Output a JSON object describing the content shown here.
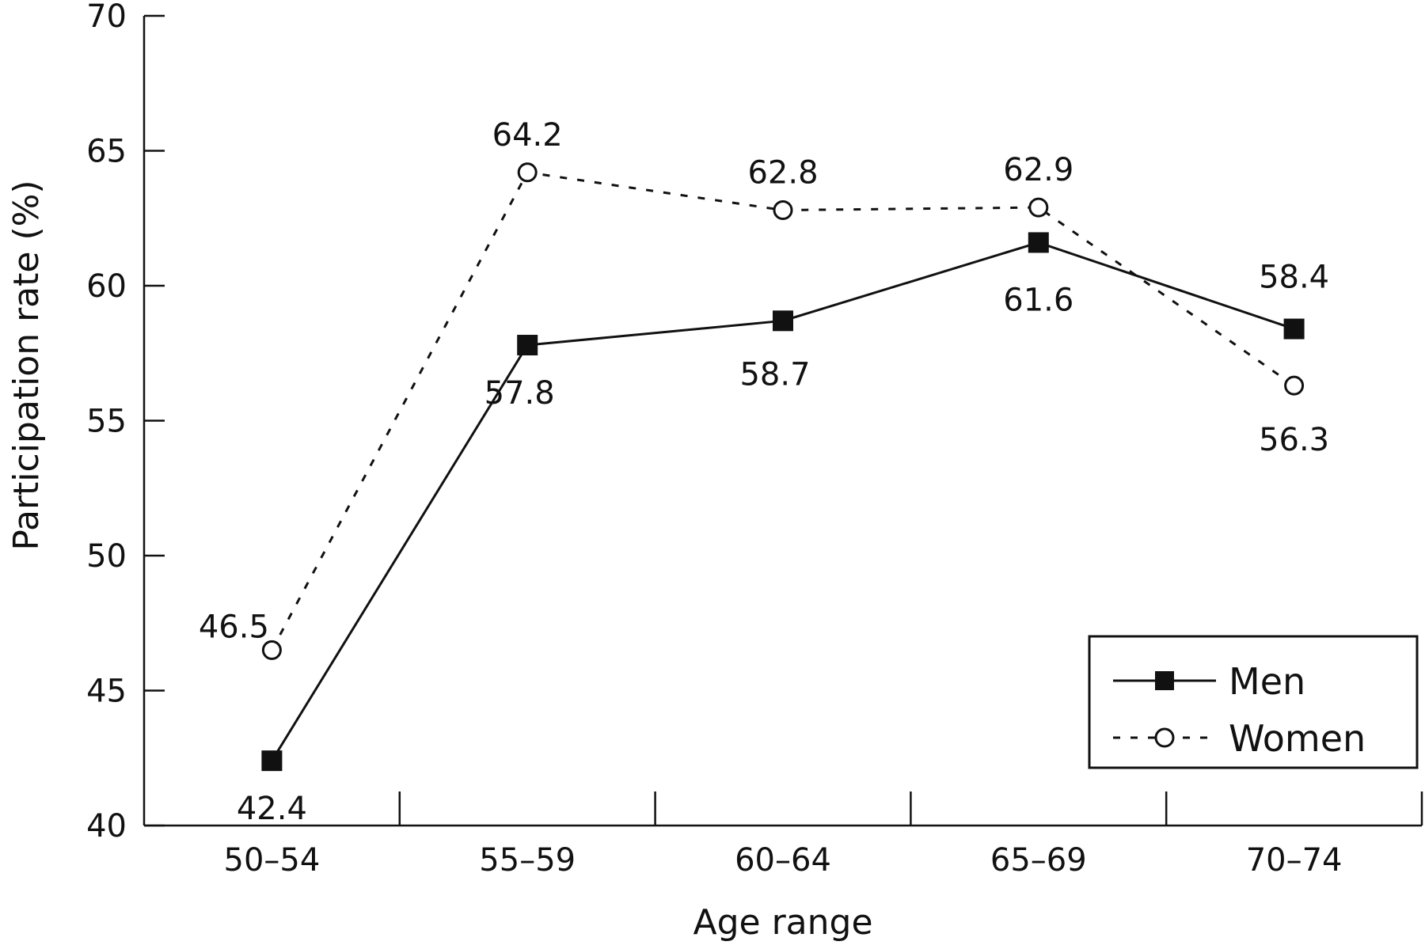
{
  "chart_data": {
    "type": "line",
    "title": "",
    "xlabel": "Age range",
    "ylabel": "Participation rate (%)",
    "categories": [
      "50–54",
      "55–59",
      "60–64",
      "65–69",
      "70–74"
    ],
    "ylim": [
      40,
      70
    ],
    "yticks": [
      40,
      45,
      50,
      55,
      60,
      65,
      70
    ],
    "grid": false,
    "legend_position": "bottom-right",
    "series": [
      {
        "name": "Men",
        "values": [
          42.4,
          57.8,
          58.7,
          61.6,
          58.4
        ],
        "labels": [
          "42.4",
          "57.8",
          "58.7",
          "61.6",
          "58.4"
        ],
        "line_style": "solid",
        "marker": "filled-square",
        "color": "#111111"
      },
      {
        "name": "Women",
        "values": [
          46.5,
          64.2,
          62.8,
          62.9,
          56.3
        ],
        "labels": [
          "46.5",
          "64.2",
          "62.8",
          "62.9",
          "56.3"
        ],
        "line_style": "dotted",
        "marker": "open-circle",
        "color": "#111111"
      }
    ]
  }
}
